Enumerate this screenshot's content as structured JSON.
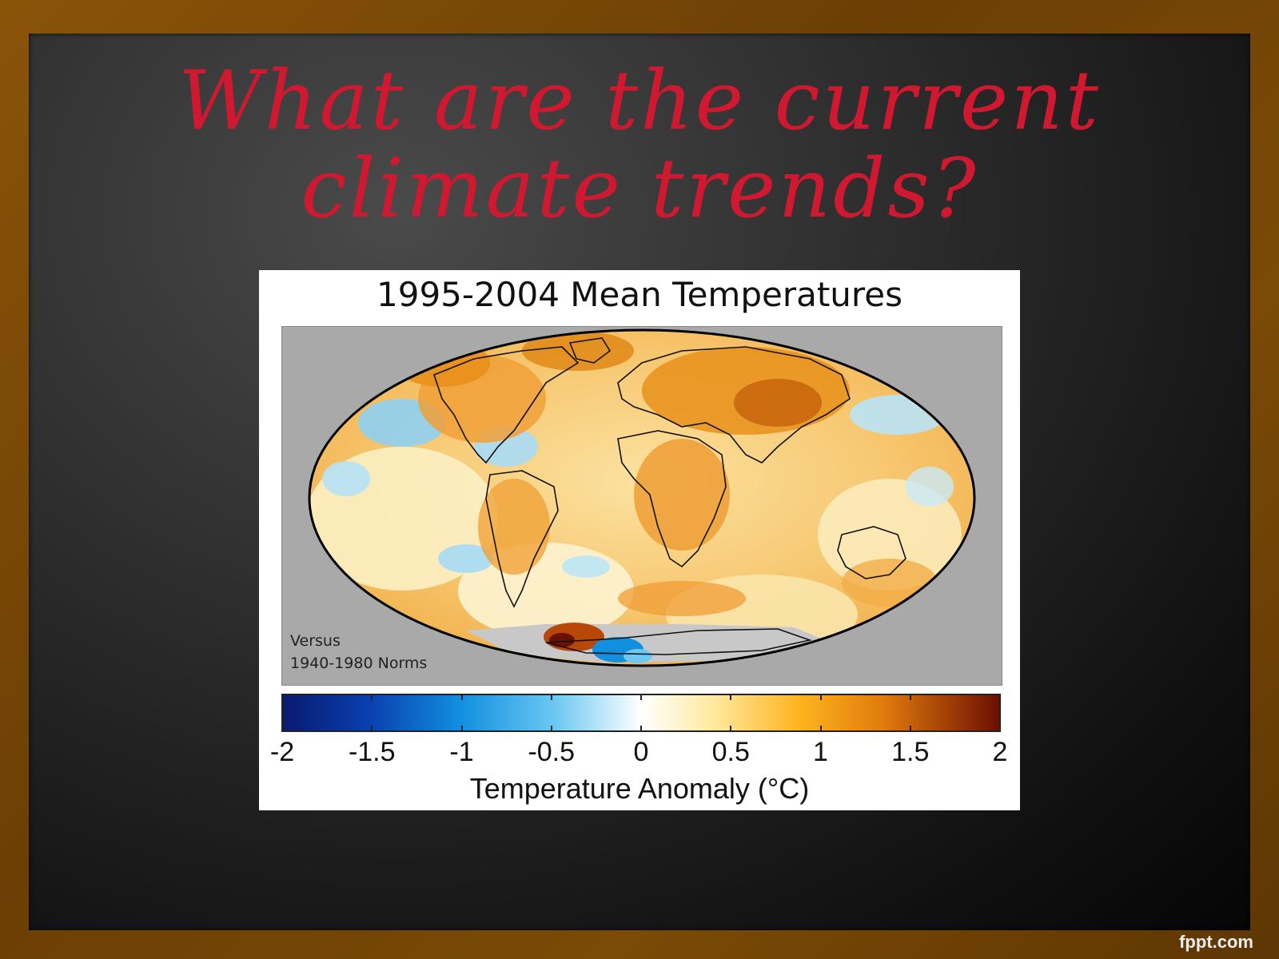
{
  "slide": {
    "title_line1": "What are the current",
    "title_line2": "climate trends?",
    "watermark": "fppt.com"
  },
  "figure": {
    "title": "1995-2004 Mean Temperatures",
    "note_line1": "Versus",
    "note_line2": "1940-1980 Norms",
    "colorbar": {
      "label": "Temperature Anomaly (°C)",
      "ticks": [
        "-2",
        "-1.5",
        "-1",
        "-0.5",
        "0",
        "0.5",
        "1",
        "1.5",
        "2"
      ],
      "min": -2,
      "max": 2,
      "colors": [
        "#081a6e",
        "#1290e0",
        "#ffffff",
        "#ffb420",
        "#6a1002"
      ]
    },
    "colors": {
      "ocean_grey": "#a9a9a9",
      "warm": "#e8901a",
      "cool": "#8fd0f2",
      "mild": "#fbe8b0"
    }
  }
}
